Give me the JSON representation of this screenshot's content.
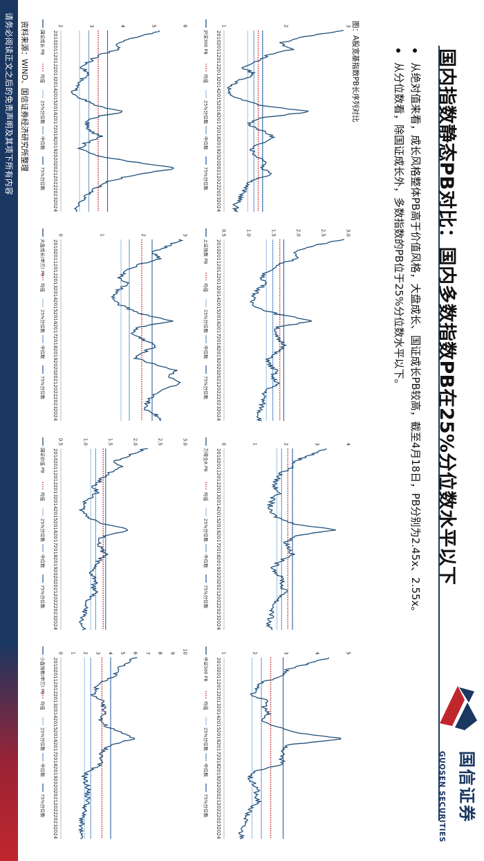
{
  "title": "国内指数静态PB对比：国内多数指数PB在25%分位数水平以下",
  "bullets": [
    "从绝对值来看，成长风格整体PB高于价值风格，大盘成长、国证成长PB较高，截至4月18日，PB分别为2.45x、2.55x。",
    "从分位数看，除国证成长外，多数指数的PB位于25%分位数水平以下。"
  ],
  "figure_caption": "图：A股宽基指数PB长序列对比",
  "source": "资料来源：WIND、国信证券经济研究所整理",
  "disclaimer": "请务必阅读正文之后的免责声明及其项下所有内容",
  "logo": {
    "cn": "国信证券",
    "en": "GUOSEN SECURITIES"
  },
  "colors": {
    "pb_line": "#1f4e79",
    "mean_line": "#c0272d",
    "p25_line": "#9dc3e6",
    "median_line": "#6f97c8",
    "p75_line": "#2e5f9e",
    "brand_navy": "#1a3761",
    "brand_red": "#c0272d"
  },
  "legend_labels": {
    "mean": "均值",
    "p25": "25%分位数",
    "median": "中位数",
    "p75": "75%分位数"
  },
  "chart_data": [
    {
      "type": "line",
      "name": "沪深300 PB",
      "x_ticks": [
        "2010",
        "2011",
        "2012",
        "2013",
        "2014",
        "2015",
        "2016",
        "2017",
        "2018",
        "2019",
        "2020",
        "2021",
        "2022",
        "2023",
        "2024"
      ],
      "ylim": [
        1,
        3
      ],
      "y_ticks": [
        "1",
        "2",
        "3"
      ],
      "mean": 1.55,
      "p25": 1.38,
      "median": 1.48,
      "p75": 1.62,
      "values": [
        2.9,
        2.3,
        1.9,
        2.1,
        1.7,
        1.5,
        1.3,
        1.5,
        1.25,
        1.1,
        1.05,
        1.25,
        1.6,
        2.4,
        1.55,
        1.4,
        1.6,
        1.8,
        1.6,
        1.45,
        1.5,
        1.7,
        1.6,
        1.8,
        1.45,
        1.35,
        1.3,
        1.25,
        1.18,
        1.2
      ]
    },
    {
      "type": "line",
      "name": "上证指数 PB",
      "x_ticks": [
        "2010",
        "2011",
        "2012",
        "2013",
        "2014",
        "2015",
        "2016",
        "2017",
        "2018",
        "2019",
        "2020",
        "2021",
        "2022",
        "2023",
        "2024"
      ],
      "ylim": [
        0.5,
        3.0
      ],
      "y_ticks": [
        "0.5",
        "1.0",
        "1.5",
        "2.0",
        "2.5",
        "3.0"
      ],
      "mean": 1.62,
      "p25": 1.35,
      "median": 1.48,
      "p75": 1.7,
      "values": [
        2.9,
        2.3,
        1.9,
        2.0,
        1.6,
        1.4,
        1.25,
        1.35,
        1.2,
        1.1,
        1.05,
        1.2,
        1.6,
        2.3,
        1.6,
        1.5,
        1.6,
        1.75,
        1.55,
        1.4,
        1.4,
        1.55,
        1.45,
        1.6,
        1.35,
        1.3,
        1.28,
        1.25,
        1.2,
        1.22
      ]
    },
    {
      "type": "line",
      "name": "万得全A PB",
      "x_ticks": [
        "2010",
        "2011",
        "2012",
        "2013",
        "2014",
        "2015",
        "2016",
        "2017",
        "2018",
        "2019",
        "2020",
        "2021",
        "2022",
        "2023",
        "2024"
      ],
      "ylim": [
        0,
        4
      ],
      "y_ticks": [
        "0",
        "1",
        "2",
        "3",
        "4"
      ],
      "mean": 2.05,
      "p25": 1.7,
      "median": 1.85,
      "p75": 2.2,
      "values": [
        3.3,
        2.8,
        2.3,
        2.2,
        1.8,
        1.7,
        1.6,
        1.8,
        1.55,
        1.5,
        1.45,
        1.7,
        2.2,
        3.6,
        2.3,
        2.0,
        2.1,
        2.2,
        1.8,
        1.6,
        1.7,
        1.9,
        1.85,
        2.0,
        1.75,
        1.6,
        1.55,
        1.5,
        1.42,
        1.48
      ]
    },
    {
      "type": "line",
      "name": "中证500 PB",
      "x_ticks": [
        "2010",
        "2011",
        "2012",
        "2013",
        "2014",
        "2015",
        "2016",
        "2017",
        "2018",
        "2019",
        "2020",
        "2021",
        "2022",
        "2023",
        "2024"
      ],
      "ylim": [
        1,
        5
      ],
      "y_ticks": [
        "1",
        "2",
        "3",
        "4",
        "5"
      ],
      "mean": 2.5,
      "p25": 1.9,
      "median": 2.2,
      "p75": 2.9,
      "values": [
        4.4,
        3.7,
        3.0,
        2.9,
        2.2,
        2.0,
        1.9,
        2.4,
        2.3,
        2.4,
        2.2,
        2.6,
        3.3,
        4.9,
        3.0,
        2.9,
        2.8,
        2.9,
        2.1,
        1.8,
        1.9,
        2.1,
        2.0,
        2.1,
        1.9,
        1.75,
        1.7,
        1.6,
        1.55,
        1.6
      ]
    },
    {
      "type": "line",
      "name": "国证成长 PB",
      "x_ticks": [
        "2010",
        "2011",
        "2012",
        "2013",
        "2014",
        "2015",
        "2016",
        "2017",
        "2018",
        "2019",
        "2020",
        "2021",
        "2022",
        "2023",
        "2024"
      ],
      "ylim": [
        2,
        6
      ],
      "y_ticks": [
        "2",
        "3",
        "4",
        "5",
        "6"
      ],
      "mean": 3.2,
      "p25": 2.6,
      "median": 2.9,
      "p75": 3.5,
      "values": [
        5.2,
        4.5,
        3.8,
        3.9,
        3.2,
        2.9,
        2.7,
        2.9,
        2.6,
        2.5,
        2.4,
        2.7,
        3.1,
        4.0,
        3.0,
        2.8,
        2.9,
        3.3,
        2.8,
        2.6,
        3.1,
        4.3,
        5.8,
        4.5,
        3.6,
        3.2,
        2.9,
        2.7,
        2.5,
        2.55
      ]
    },
    {
      "type": "line",
      "name": "大盘成长(申万) PB",
      "x_ticks": [
        "2010",
        "2011",
        "2012",
        "2013",
        "2014",
        "2015",
        "2016",
        "2017",
        "2018",
        "2019",
        "2020",
        "2021",
        "2022",
        "2023",
        "2024"
      ],
      "ylim": [
        0,
        3
      ],
      "y_ticks": [
        "0",
        "1",
        "2",
        "3"
      ],
      "mean": 1.95,
      "p25": 1.45,
      "median": 1.65,
      "p75": 2.2,
      "values": [
        2.9,
        2.6,
        2.2,
        2.4,
        1.9,
        1.6,
        1.4,
        1.6,
        1.4,
        1.25,
        1.3,
        1.6,
        2.0,
        2.7,
        1.9,
        1.7,
        2.0,
        2.3,
        2.0,
        1.8,
        2.3,
        2.8,
        2.6,
        2.9,
        2.4,
        2.2,
        2.1,
        2.0,
        2.3,
        2.45
      ]
    },
    {
      "type": "line",
      "name": "国证价值 PB",
      "x_ticks": [
        "2010",
        "2011",
        "2012",
        "2013",
        "2014",
        "2015",
        "2016",
        "2017",
        "2018",
        "2019",
        "2020",
        "2021",
        "2022",
        "2023",
        "2024"
      ],
      "ylim": [
        0.5,
        3.0
      ],
      "y_ticks": [
        "0.5",
        "1.0",
        "1.5",
        "2.0",
        "2.5",
        "3.0"
      ],
      "mean": 1.35,
      "p25": 1.1,
      "median": 1.2,
      "p75": 1.4,
      "values": [
        2.2,
        1.9,
        1.6,
        1.7,
        1.45,
        1.3,
        1.15,
        1.25,
        1.05,
        0.95,
        0.92,
        1.05,
        1.35,
        1.9,
        1.35,
        1.25,
        1.3,
        1.4,
        1.25,
        1.15,
        1.1,
        1.2,
        1.15,
        1.2,
        1.05,
        1.0,
        0.98,
        0.95,
        0.9,
        0.95
      ]
    },
    {
      "type": "line",
      "name": "小盘指数(申万) PB",
      "x_ticks": [
        "2010",
        "2011",
        "2012",
        "2013",
        "2014",
        "2015",
        "2016",
        "2017",
        "2018",
        "2019",
        "2020",
        "2021",
        "2022",
        "2023",
        "2024"
      ],
      "ylim": [
        0,
        10
      ],
      "y_ticks": [
        "0",
        "1",
        "2",
        "3",
        "4",
        "5",
        "6",
        "7",
        "8",
        "9",
        "10"
      ],
      "mean": 3.3,
      "p25": 1.9,
      "median": 2.4,
      "p75": 4.0,
      "values": [
        6.0,
        5.2,
        4.5,
        4.3,
        3.3,
        2.8,
        2.6,
        3.3,
        3.4,
        3.6,
        3.2,
        3.6,
        4.8,
        6.0,
        3.9,
        3.4,
        3.2,
        3.3,
        2.3,
        1.9,
        2.0,
        2.2,
        2.1,
        2.2,
        1.95,
        1.8,
        1.7,
        1.6,
        1.55,
        1.6
      ]
    }
  ]
}
